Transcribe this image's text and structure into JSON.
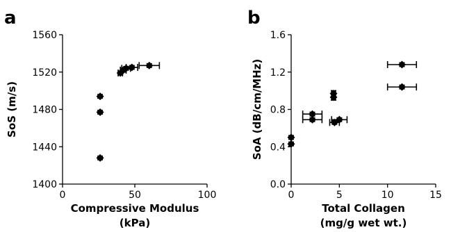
{
  "chart_data": [
    {
      "type": "scatter",
      "panel_label": "a",
      "xlabel": [
        "Compressive Modulus",
        "(kPa)"
      ],
      "ylabel": "SoS (m/s)",
      "xlim": [
        0,
        100
      ],
      "ylim": [
        1400,
        1560
      ],
      "xticks": [
        0,
        50,
        100
      ],
      "yticks": [
        1400,
        1440,
        1480,
        1520,
        1560
      ],
      "grid": false,
      "series": [
        {
          "marker": "diamond",
          "color": "#000000",
          "points": [
            {
              "x": 26,
              "y": 1494,
              "yerr": 2
            },
            {
              "x": 26,
              "y": 1477,
              "yerr": 2
            },
            {
              "x": 26,
              "y": 1428,
              "yerr": 2
            },
            {
              "x": 40,
              "y": 1519,
              "xerr": 1.5,
              "yerr": 2
            },
            {
              "x": 42,
              "y": 1522,
              "xerr": 2,
              "yerr": 2
            },
            {
              "x": 44,
              "y": 1524,
              "xerr": 3,
              "yerr": 2
            },
            {
              "x": 48,
              "y": 1525,
              "xerr": 4,
              "yerr": 2
            },
            {
              "x": 60,
              "y": 1527,
              "xerr": 7,
              "yerr": 2
            }
          ]
        }
      ]
    },
    {
      "type": "scatter",
      "panel_label": "b",
      "xlabel": [
        "Total Collagen",
        "(mg/g wet wt.)"
      ],
      "ylabel": "SoA (dB/cm/MHz)",
      "xlim": [
        0,
        15
      ],
      "ylim": [
        0.0,
        1.6
      ],
      "xticks": [
        0,
        5,
        10,
        15
      ],
      "yticks": [
        0.0,
        0.4,
        0.8,
        1.2,
        1.6
      ],
      "ytick_labels": [
        "0.0",
        "0.4",
        "0.8",
        "1.2",
        "1.6"
      ],
      "grid": false,
      "series": [
        {
          "marker": "diamond",
          "color": "#000000",
          "points": [
            {
              "x": 0,
              "y": 0.5,
              "yerr": 0.02
            },
            {
              "x": 0,
              "y": 0.43,
              "yerr": 0.02
            },
            {
              "x": 2.2,
              "y": 0.75,
              "xerr": 1,
              "yerr": 0.02
            },
            {
              "x": 2.2,
              "y": 0.69,
              "xerr": 1,
              "yerr": 0.02
            },
            {
              "x": 4.4,
              "y": 0.97,
              "xerr": 0.2,
              "yerr": 0.03
            },
            {
              "x": 4.4,
              "y": 0.93,
              "xerr": 0.2,
              "yerr": 0.03
            },
            {
              "x": 4.5,
              "y": 0.66,
              "xerr": 0.5,
              "yerr": 0.02
            },
            {
              "x": 5.0,
              "y": 0.69,
              "xerr": 0.8,
              "yerr": 0.02
            },
            {
              "x": 11.5,
              "y": 1.28,
              "xerr": 1.5,
              "yerr": 0.02
            },
            {
              "x": 11.5,
              "y": 1.04,
              "xerr": 1.5,
              "yerr": 0.02
            }
          ]
        }
      ]
    }
  ]
}
